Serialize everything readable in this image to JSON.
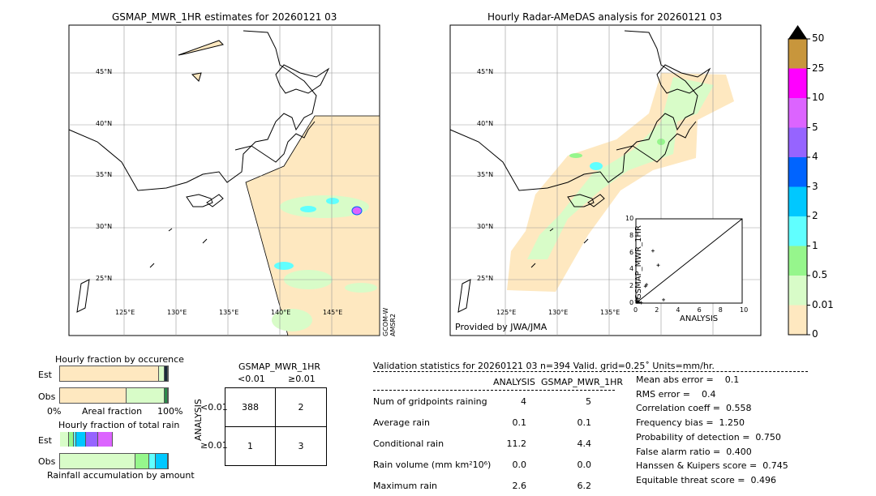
{
  "left_map": {
    "title": "GSMAP_MWR_1HR estimates for 20260121 03",
    "side_label": [
      "GCOM-W",
      "AMSR2"
    ],
    "lat_labels": [
      "45°N",
      "40°N",
      "35°N",
      "30°N",
      "25°N"
    ],
    "lon_labels": [
      "125°E",
      "130°E",
      "135°E",
      "140°E",
      "145°E"
    ]
  },
  "right_map": {
    "title": "Hourly Radar-AMeDAS analysis for 20260121 03",
    "credit": "Provided by JWA/JMA",
    "lat_labels": [
      "45°N",
      "40°N",
      "35°N",
      "30°N",
      "25°N"
    ],
    "lon_labels": [
      "125°E",
      "130°E",
      "135°E"
    ]
  },
  "colorbar": {
    "levels": [
      "0",
      "0.01",
      "0.5",
      "1",
      "2",
      "3",
      "4",
      "5",
      "10",
      "25",
      "50"
    ],
    "colors": [
      "#fee8c0",
      "#d8fcc8",
      "#96f68c",
      "#60ffff",
      "#00c8ff",
      "#0064ff",
      "#9664ff",
      "#dc64ff",
      "#ff00ff",
      "#c8963c"
    ],
    "extend_color": "#000000"
  },
  "chart_data": {
    "type": "scatter",
    "xlabel": "ANALYSIS",
    "ylabel": "GSMAP_MWR_1HR",
    "xlim": [
      0,
      10
    ],
    "ylim": [
      0,
      10
    ],
    "ticks": [
      "0",
      "2",
      "4",
      "6",
      "8",
      "10"
    ],
    "points": [
      [
        1.6,
        6.2
      ],
      [
        2.1,
        4.5
      ],
      [
        1.0,
        2.2
      ],
      [
        0.9,
        2.0
      ],
      [
        2.6,
        0.4
      ],
      [
        0.1,
        0.1
      ],
      [
        0.2,
        0.2
      ],
      [
        0.3,
        0.1
      ],
      [
        0.5,
        0.05
      ],
      [
        0.1,
        0.6
      ],
      [
        0.05,
        0.3
      ]
    ]
  },
  "occurrence": {
    "title": "Hourly fraction by occurence",
    "xlabel": "Areal fraction",
    "x0": "0%",
    "x1": "100%",
    "est_label": "Est",
    "obs_label": "Obs",
    "est": [
      {
        "frac": 0.92,
        "color": "#fee8c0"
      },
      {
        "frac": 0.05,
        "color": "#d8fcc8"
      },
      {
        "frac": 0.03,
        "color": "#1a2a3a"
      }
    ],
    "obs": [
      {
        "frac": 0.62,
        "color": "#fee8c0"
      },
      {
        "frac": 0.35,
        "color": "#d8fcc8"
      },
      {
        "frac": 0.03,
        "color": "#2a8a4a"
      }
    ]
  },
  "total_rain": {
    "title": "Hourly fraction of total rain",
    "xlabel": "Rainfall accumulation by amount",
    "est_label": "Est",
    "obs_label": "Obs",
    "est": [
      {
        "frac": 0.08,
        "color": "#d8fcc8"
      },
      {
        "frac": 0.05,
        "color": "#96f68c"
      },
      {
        "frac": 0.02,
        "color": "#60ffff"
      },
      {
        "frac": 0.09,
        "color": "#00c8ff"
      },
      {
        "frac": 0.11,
        "color": "#9664ff"
      },
      {
        "frac": 0.14,
        "color": "#dc64ff"
      }
    ],
    "obs": [
      {
        "frac": 0.7,
        "color": "#d8fcc8"
      },
      {
        "frac": 0.13,
        "color": "#96f68c"
      },
      {
        "frac": 0.06,
        "color": "#60ffff"
      },
      {
        "frac": 0.11,
        "color": "#00c8ff"
      }
    ]
  },
  "contingency": {
    "title": "GSMAP_MWR_1HR",
    "col_labels": [
      "<0.01",
      "≥0.01"
    ],
    "row_title": "ANALYSIS",
    "row_labels": [
      "<0.01",
      "≥0.01"
    ],
    "cells": [
      [
        "388",
        "2"
      ],
      [
        "1",
        "3"
      ]
    ]
  },
  "validation": {
    "header": "Validation statistics for 20260121 03  n=394 Valid. grid=0.25˚ Units=mm/hr.",
    "col_headers": [
      "ANALYSIS",
      "GSMAP_MWR_1HR"
    ],
    "rows": [
      {
        "label": "Num of gridpoints raining",
        "a": "4",
        "b": "5"
      },
      {
        "label": "Average rain",
        "a": "0.1",
        "b": "0.1"
      },
      {
        "label": "Conditional rain",
        "a": "11.2",
        "b": "4.4"
      },
      {
        "label": "Rain volume (mm km²10⁶)",
        "a": "0.0",
        "b": "0.0"
      },
      {
        "label": "Maximum rain",
        "a": "2.6",
        "b": "6.2"
      }
    ],
    "scores": [
      "Mean abs error =    0.1",
      "RMS error =    0.4",
      "Correlation coeff =  0.558",
      "Frequency bias =  1.250",
      "Probability of detection =  0.750",
      "False alarm ratio =  0.400",
      "Hanssen & Kuipers score =  0.745",
      "Equitable threat score =  0.496"
    ]
  }
}
